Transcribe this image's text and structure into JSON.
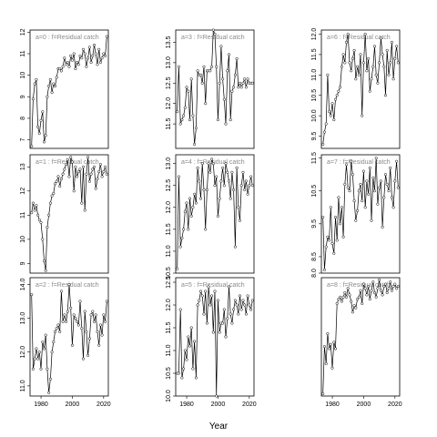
{
  "figure": {
    "xlabel": "Year"
  },
  "chart_data": [
    {
      "type": "line",
      "title": "a=0 : f=Residual catch",
      "ylim": [
        6.6,
        12.1
      ],
      "yticks": [
        7,
        8,
        9,
        10,
        11,
        12
      ],
      "x": [
        1974,
        1975,
        1976,
        1977,
        1978,
        1979,
        1980,
        1981,
        1982,
        1983,
        1984,
        1985,
        1986,
        1987,
        1988,
        1989,
        1990,
        1991,
        1992,
        1993,
        1994,
        1995,
        1996,
        1997,
        1998,
        1999,
        2000,
        2001,
        2002,
        2003,
        2004,
        2005,
        2006,
        2007,
        2008,
        2009,
        2010,
        2011,
        2012,
        2013,
        2014,
        2015,
        2016,
        2017,
        2018,
        2019,
        2020,
        2021,
        2022
      ],
      "y": [
        6.7,
        8.9,
        9.6,
        9.8,
        7.6,
        7.3,
        7.9,
        8.3,
        6.9,
        7.2,
        9.0,
        9.5,
        9.8,
        9.2,
        9.6,
        9.5,
        9.9,
        10.3,
        10.3,
        10.2,
        10.4,
        10.8,
        10.5,
        10.6,
        10.4,
        10.9,
        10.7,
        11.0,
        10.3,
        10.6,
        10.5,
        10.9,
        10.8,
        11.2,
        11.0,
        10.4,
        10.8,
        11.3,
        10.6,
        10.9,
        11.4,
        11.0,
        10.5,
        11.2,
        10.6,
        10.8,
        11.0,
        10.9,
        11.8
      ]
    },
    {
      "type": "line",
      "title": "a=1 : f=Residual catch",
      "ylim": [
        8.6,
        13.5
      ],
      "yticks": [
        9,
        10,
        11,
        12,
        13
      ],
      "x": [
        1974,
        1975,
        1976,
        1977,
        1978,
        1979,
        1980,
        1981,
        1982,
        1983,
        1984,
        1985,
        1986,
        1987,
        1988,
        1989,
        1990,
        1991,
        1992,
        1993,
        1994,
        1995,
        1996,
        1997,
        1998,
        1999,
        2000,
        2001,
        2002,
        2003,
        2004,
        2005,
        2006,
        2007,
        2008,
        2009,
        2010,
        2011,
        2012,
        2013,
        2014,
        2015,
        2016,
        2017,
        2018,
        2019,
        2020,
        2021,
        2022
      ],
      "y": [
        11.1,
        11.5,
        11.2,
        11.4,
        11.0,
        10.8,
        10.7,
        10.0,
        9.1,
        8.7,
        10.5,
        11.0,
        11.5,
        11.8,
        11.9,
        12.3,
        12.4,
        12.6,
        12.2,
        12.5,
        12.7,
        12.9,
        13.1,
        13.3,
        12.6,
        13.4,
        13.2,
        12.0,
        13.0,
        12.6,
        12.8,
        12.9,
        11.5,
        13.0,
        11.2,
        12.7,
        13.4,
        12.4,
        12.7,
        12.9,
        13.0,
        12.1,
        12.5,
        12.8,
        13.1,
        12.6,
        12.8,
        13.0,
        12.7
      ]
    },
    {
      "type": "line",
      "title": "a=2 : f=Residual catch",
      "ylim": [
        10.7,
        14.2
      ],
      "yticks": [
        11,
        12,
        13,
        14
      ],
      "x": [
        1974,
        1975,
        1976,
        1977,
        1978,
        1979,
        1980,
        1981,
        1982,
        1983,
        1984,
        1985,
        1986,
        1987,
        1988,
        1989,
        1990,
        1991,
        1992,
        1993,
        1994,
        1995,
        1996,
        1997,
        1998,
        1999,
        2000,
        2001,
        2002,
        2003,
        2004,
        2005,
        2006,
        2007,
        2008,
        2009,
        2010,
        2011,
        2012,
        2013,
        2014,
        2015,
        2016,
        2017,
        2018,
        2019,
        2020,
        2021,
        2022
      ],
      "y": [
        13.7,
        11.5,
        11.8,
        12.1,
        11.8,
        12.0,
        11.5,
        12.3,
        12.1,
        12.5,
        11.5,
        10.8,
        11.2,
        12.0,
        12.3,
        12.6,
        12.7,
        12.8,
        12.6,
        13.8,
        12.9,
        13.1,
        12.9,
        13.2,
        14.0,
        13.3,
        12.2,
        13.1,
        13.0,
        12.9,
        12.8,
        13.5,
        12.7,
        11.8,
        13.2,
        12.6,
        11.9,
        12.4,
        13.1,
        13.2,
        12.9,
        13.1,
        12.6,
        12.2,
        12.8,
        12.5,
        13.1,
        12.9,
        13.5
      ]
    },
    {
      "type": "line",
      "title": "a=3 : f=Residual catch",
      "ylim": [
        10.9,
        13.8
      ],
      "yticks": [
        11.5,
        12.0,
        12.5,
        13.0,
        13.5
      ],
      "x": [
        1974,
        1975,
        1976,
        1977,
        1978,
        1979,
        1980,
        1981,
        1982,
        1983,
        1984,
        1985,
        1986,
        1987,
        1988,
        1989,
        1990,
        1991,
        1992,
        1993,
        1994,
        1995,
        1996,
        1997,
        1998,
        1999,
        2000,
        2001,
        2002,
        2003,
        2004,
        2005,
        2006,
        2007,
        2008,
        2009,
        2010,
        2011,
        2012,
        2013,
        2014,
        2015,
        2016,
        2017,
        2018,
        2019,
        2020,
        2021,
        2022
      ],
      "y": [
        11.8,
        12.9,
        11.5,
        11.6,
        11.7,
        11.9,
        12.4,
        12.3,
        11.6,
        12.6,
        11.7,
        11.0,
        11.4,
        12.8,
        12.7,
        12.7,
        12.5,
        12.9,
        12.0,
        12.8,
        12.8,
        12.8,
        12.9,
        13.8,
        13.7,
        12.9,
        11.6,
        12.5,
        13.4,
        12.6,
        12.1,
        11.5,
        12.8,
        13.2,
        11.6,
        12.3,
        12.4,
        12.7,
        13.1,
        12.4,
        12.5,
        12.4,
        12.5,
        12.6,
        12.4,
        12.6,
        12.5,
        12.5,
        12.5
      ]
    },
    {
      "type": "line",
      "title": "a=4 : f=Residual catch",
      "ylim": [
        10.5,
        13.2
      ],
      "yticks": [
        10.5,
        11.0,
        11.5,
        12.0,
        12.5,
        13.0
      ],
      "x": [
        1974,
        1975,
        1976,
        1977,
        1978,
        1979,
        1980,
        1981,
        1982,
        1983,
        1984,
        1985,
        1986,
        1987,
        1988,
        1989,
        1990,
        1991,
        1992,
        1993,
        1994,
        1995,
        1996,
        1997,
        1998,
        1999,
        2000,
        2001,
        2002,
        2003,
        2004,
        2005,
        2006,
        2007,
        2008,
        2009,
        2010,
        2011,
        2012,
        2013,
        2014,
        2015,
        2016,
        2017,
        2018,
        2019,
        2020,
        2021,
        2022
      ],
      "y": [
        10.6,
        12.7,
        11.1,
        11.3,
        11.5,
        11.9,
        12.1,
        11.5,
        12.2,
        11.8,
        12.0,
        12.3,
        12.1,
        12.9,
        12.6,
        12.2,
        13.0,
        12.4,
        11.5,
        12.4,
        13.0,
        12.8,
        13.1,
        13.0,
        12.5,
        12.7,
        11.8,
        12.2,
        12.6,
        12.9,
        12.5,
        13.0,
        12.8,
        12.6,
        12.2,
        12.8,
        12.4,
        11.1,
        12.9,
        12.0,
        11.7,
        12.5,
        12.8,
        12.4,
        12.6,
        12.3,
        12.5,
        12.7,
        12.5
      ]
    },
    {
      "type": "line",
      "title": "a=5 : f=Residual catch",
      "ylim": [
        10.0,
        12.6
      ],
      "yticks": [
        10.0,
        10.5,
        11.0,
        11.5,
        12.0,
        12.5
      ],
      "x": [
        1974,
        1975,
        1976,
        1977,
        1978,
        1979,
        1980,
        1981,
        1982,
        1983,
        1984,
        1985,
        1986,
        1987,
        1988,
        1989,
        1990,
        1991,
        1992,
        1993,
        1994,
        1995,
        1996,
        1997,
        1998,
        1999,
        2000,
        2001,
        2002,
        2003,
        2004,
        2005,
        2006,
        2007,
        2008,
        2009,
        2010,
        2011,
        2012,
        2013,
        2014,
        2015,
        2016,
        2017,
        2018,
        2019,
        2020,
        2021,
        2022
      ],
      "y": [
        10.5,
        10.5,
        11.9,
        10.4,
        10.6,
        11.0,
        10.8,
        11.3,
        11.1,
        11.5,
        10.6,
        11.2,
        10.4,
        12.0,
        12.1,
        12.3,
        12.2,
        11.8,
        12.3,
        11.6,
        12.4,
        12.0,
        12.2,
        11.4,
        12.3,
        10.0,
        12.1,
        11.4,
        11.6,
        11.6,
        11.9,
        11.3,
        11.7,
        12.4,
        11.8,
        11.6,
        11.9,
        12.1,
        12.0,
        11.8,
        12.2,
        11.9,
        12.1,
        12.0,
        11.8,
        12.2,
        12.0,
        11.9,
        12.1
      ]
    },
    {
      "type": "line",
      "title": "a=6 : f=Residual catch",
      "ylim": [
        9.2,
        12.1
      ],
      "yticks": [
        9.5,
        10.0,
        10.5,
        11.0,
        11.5,
        12.0
      ],
      "x": [
        1974,
        1975,
        1976,
        1977,
        1978,
        1979,
        1980,
        1981,
        1982,
        1983,
        1984,
        1985,
        1986,
        1987,
        1988,
        1989,
        1990,
        1991,
        1992,
        1993,
        1994,
        1995,
        1996,
        1997,
        1998,
        1999,
        2000,
        2001,
        2002,
        2003,
        2004,
        2005,
        2006,
        2007,
        2008,
        2009,
        2010,
        2011,
        2012,
        2013,
        2014,
        2015,
        2016,
        2017,
        2018,
        2019,
        2020,
        2021,
        2022
      ],
      "y": [
        9.3,
        9.6,
        9.8,
        11.0,
        10.1,
        10.0,
        10.3,
        9.9,
        10.4,
        10.5,
        10.6,
        10.7,
        11.2,
        11.5,
        11.3,
        11.8,
        12.0,
        11.3,
        11.1,
        11.4,
        11.6,
        10.9,
        11.2,
        11.0,
        11.5,
        10.0,
        11.3,
        12.0,
        11.1,
        11.4,
        10.6,
        10.9,
        11.2,
        11.7,
        11.0,
        10.8,
        11.3,
        11.9,
        11.5,
        11.2,
        10.5,
        11.6,
        11.0,
        11.3,
        11.8,
        10.9,
        11.4,
        11.7,
        11.3
      ]
    },
    {
      "type": "line",
      "title": "a=7 : f=Residual catch",
      "ylim": [
        8.0,
        11.6
      ],
      "yticks": [
        8.0,
        8.5,
        9.5,
        10.5,
        11.5
      ],
      "x": [
        1974,
        1975,
        1976,
        1977,
        1978,
        1979,
        1980,
        1981,
        1982,
        1983,
        1984,
        1985,
        1986,
        1987,
        1988,
        1989,
        1990,
        1991,
        1992,
        1993,
        1994,
        1995,
        1996,
        1997,
        1998,
        1999,
        2000,
        2001,
        2002,
        2003,
        2004,
        2005,
        2006,
        2007,
        2008,
        2009,
        2010,
        2011,
        2012,
        2013,
        2014,
        2015,
        2016,
        2017,
        2018,
        2019,
        2020,
        2021,
        2022
      ],
      "y": [
        9.7,
        8.1,
        8.8,
        9.1,
        9.0,
        10.0,
        8.9,
        8.6,
        9.7,
        9.0,
        10.3,
        9.5,
        10.0,
        9.1,
        10.7,
        11.3,
        10.6,
        10.5,
        11.4,
        11.0,
        10.2,
        9.6,
        9.9,
        10.5,
        10.7,
        10.2,
        11.1,
        10.0,
        10.8,
        10.4,
        11.2,
        9.6,
        10.9,
        10.5,
        11.5,
        10.1,
        10.6,
        10.8,
        9.4,
        10.3,
        11.0,
        10.7,
        10.5,
        11.2,
        10.3,
        10.0,
        10.8,
        11.4,
        10.6
      ]
    },
    {
      "type": "line",
      "title": "a=8 : f=Residual catch",
      "ylim": [
        6.3,
        11.8
      ],
      "yticks": [],
      "x": [
        1974,
        1975,
        1976,
        1977,
        1978,
        1979,
        1980,
        1981,
        1982,
        1983,
        1984,
        1985,
        1986,
        1987,
        1988,
        1989,
        1990,
        1991,
        1992,
        1993,
        1994,
        1995,
        1996,
        1997,
        1998,
        1999,
        2000,
        2001,
        2002,
        2003,
        2004,
        2005,
        2006,
        2007,
        2008,
        2009,
        2010,
        2011,
        2012,
        2013,
        2014,
        2015,
        2016,
        2017,
        2018,
        2019,
        2020,
        2021,
        2022
      ],
      "y": [
        6.4,
        8.6,
        7.8,
        9.2,
        8.5,
        8.7,
        7.6,
        8.8,
        8.5,
        10.6,
        10.8,
        10.9,
        10.7,
        10.9,
        11.1,
        10.9,
        11.3,
        11.0,
        10.7,
        10.2,
        10.5,
        10.4,
        10.8,
        10.9,
        11.2,
        10.6,
        11.5,
        11.3,
        11.0,
        11.4,
        10.8,
        11.2,
        11.6,
        11.1,
        10.9,
        11.3,
        11.7,
        11.2,
        11.0,
        11.4,
        11.5,
        11.1,
        11.3,
        11.6,
        11.2,
        11.4,
        11.5,
        11.3,
        11.4
      ]
    }
  ]
}
